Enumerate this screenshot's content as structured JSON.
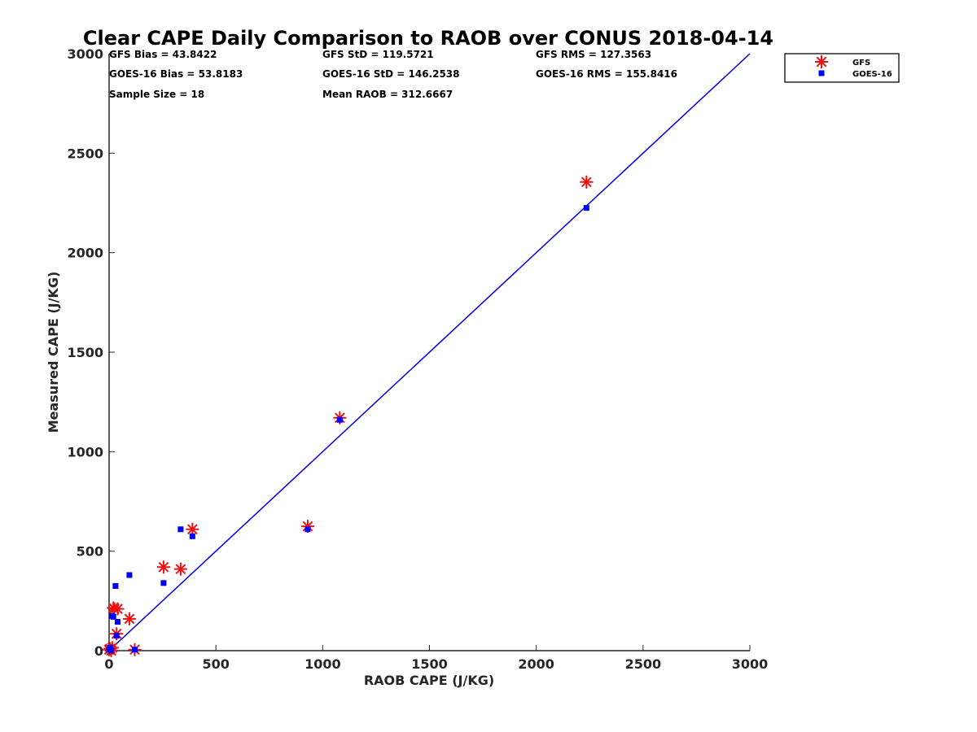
{
  "chart_data": {
    "type": "scatter",
    "title": "Clear CAPE Daily Comparison to RAOB over CONUS 2018-04-14",
    "xlabel": "RAOB CAPE (J/KG)",
    "ylabel": "Measured CAPE (J/KG)",
    "xlim": [
      0,
      3000
    ],
    "ylim": [
      0,
      3000
    ],
    "xticks": [
      "0",
      "500",
      "1000",
      "1500",
      "2000",
      "2500",
      "3000"
    ],
    "yticks": [
      "0",
      "500",
      "1000",
      "1500",
      "2000",
      "2500",
      "3000"
    ],
    "grid": false,
    "legend_position": "top-right-outside",
    "reference_line": {
      "x": [
        0,
        3000
      ],
      "y": [
        0,
        3000
      ],
      "color": "#0000ee"
    },
    "stats": [
      [
        "GFS Bias = 43.8422",
        "GFS StD = 119.5721",
        "GFS RMS = 127.3563"
      ],
      [
        "GOES-16 Bias = 53.8183",
        "GOES-16 StD = 146.2538",
        "GOES-16 RMS = 155.8416"
      ],
      [
        "Sample Size = 18",
        "Mean RAOB = 312.6667",
        ""
      ]
    ],
    "series": [
      {
        "name": "GFS",
        "marker": "asterisk",
        "color": "#ee1111",
        "x": [
          0,
          5,
          10,
          15,
          20,
          25,
          35,
          40,
          95,
          120,
          255,
          335,
          390,
          930,
          1080,
          2235
        ],
        "y": [
          5,
          10,
          0,
          15,
          215,
          210,
          85,
          210,
          160,
          5,
          420,
          410,
          610,
          625,
          1170,
          2355
        ]
      },
      {
        "name": "GOES-16",
        "marker": "square",
        "color": "#0000ff",
        "x": [
          0,
          5,
          10,
          15,
          20,
          30,
          35,
          40,
          95,
          120,
          255,
          335,
          390,
          930,
          1080,
          2235
        ],
        "y": [
          5,
          15,
          0,
          175,
          170,
          325,
          75,
          145,
          380,
          5,
          340,
          610,
          575,
          610,
          1160,
          2225
        ]
      }
    ]
  }
}
